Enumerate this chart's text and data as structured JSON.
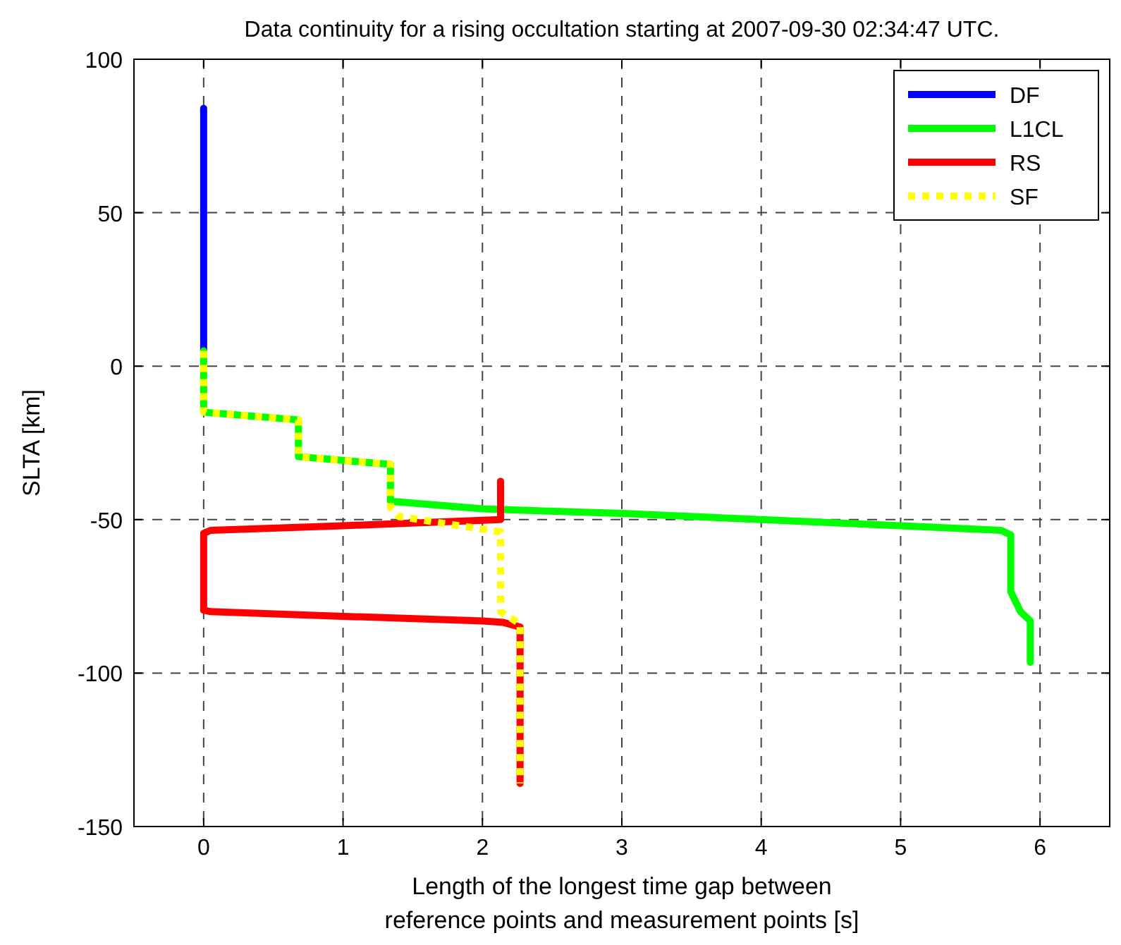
{
  "chart_data": {
    "type": "line",
    "title": "Data continuity for a rising occultation starting at 2007-09-30 02:34:47 UTC.",
    "xlabel": "Length of the longest time gap between\nreference points and measurement points [s]",
    "ylabel": "SLTA [km]",
    "xlim": [
      -0.5,
      6.5
    ],
    "ylim": [
      -150,
      100
    ],
    "xticks": [
      0,
      1,
      2,
      3,
      4,
      5,
      6
    ],
    "yticks": [
      -150,
      -100,
      -50,
      0,
      50,
      100
    ],
    "grid": true,
    "legend": "top right",
    "series": [
      {
        "name": "DF",
        "color": "#0000ff",
        "line_style": "solid",
        "x": [
          0,
          0
        ],
        "values": [
          84,
          5
        ]
      },
      {
        "name": "L1CL",
        "color": "#00ff00",
        "line_style": "solid",
        "x": [
          0,
          0,
          0.68,
          0.68,
          1.34,
          1.34,
          2,
          3,
          4,
          5,
          5.72,
          5.79,
          5.79,
          5.86,
          5.93,
          5.93
        ],
        "values": [
          5,
          -15,
          -17.5,
          -29.5,
          -32,
          -44,
          -46.5,
          -48,
          -50,
          -52,
          -53.5,
          -55,
          -73.5,
          -80,
          -83,
          -96.5
        ]
      },
      {
        "name": "RS",
        "color": "#ff0000",
        "line_style": "solid",
        "x": [
          2.13,
          2.13,
          1,
          0.05,
          0,
          0,
          0.05,
          1,
          2,
          2.15,
          2.27,
          2.27
        ],
        "values": [
          -37.5,
          -50,
          -52,
          -53.5,
          -54.5,
          -79.5,
          -80,
          -81.5,
          -83,
          -83.5,
          -85,
          -136
        ]
      },
      {
        "name": "SF",
        "color": "#ffff00",
        "line_style": "dotted",
        "x": [
          0,
          0,
          0.68,
          0.68,
          1.34,
          1.34,
          1.4,
          2.13,
          2.13,
          2.27,
          2.27
        ],
        "values": [
          5,
          -15,
          -17.5,
          -29.5,
          -32,
          -46,
          -49,
          -54,
          -80,
          -84,
          -136
        ]
      }
    ]
  }
}
